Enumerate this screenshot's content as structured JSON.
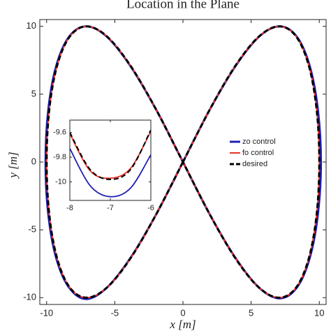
{
  "chart_data": [
    {
      "type": "line",
      "title": "Location in the Plane",
      "xlabel": "x [m]",
      "ylabel": "y [m]",
      "xlim": [
        -10.5,
        10.5
      ],
      "ylim": [
        -10.5,
        10.5
      ],
      "xticks": [
        -10,
        -5,
        0,
        5,
        10
      ],
      "yticks": [
        -10,
        -5,
        0,
        5,
        10
      ],
      "legend": "right",
      "series": [
        {
          "name": "zo control",
          "color": "#1f1fb4",
          "width": 3,
          "dash": false,
          "x": [
            0,
            1.95,
            3.85,
            5.58,
            7.09,
            8.35,
            9.3,
            9.9,
            10.12,
            9.9,
            9.3,
            8.35,
            7.09,
            5.58,
            3.85,
            1.95,
            0,
            -1.95,
            -3.85,
            -5.58,
            -7.09,
            -8.35,
            -9.3,
            -9.88,
            -10.08,
            -9.88,
            -9.3,
            -8.35,
            -7.09,
            -5.58,
            -3.85,
            -1.95,
            0
          ],
          "y": [
            0,
            3.83,
            7.07,
            9.24,
            10,
            9.24,
            7.07,
            3.83,
            0,
            -3.83,
            -7.07,
            -9.26,
            -10.05,
            -9.26,
            -7.07,
            -3.83,
            0,
            3.83,
            7.07,
            9.24,
            10,
            9.24,
            7.07,
            3.83,
            0,
            -3.83,
            -7.07,
            -9.26,
            -10.1,
            -9.26,
            -7.07,
            -3.83,
            0
          ]
        },
        {
          "name": "fo control",
          "color": "#e8332a",
          "width": 2,
          "dash": false,
          "x": [
            0,
            1.95,
            3.83,
            5.56,
            7.07,
            8.31,
            9.24,
            9.81,
            10,
            9.81,
            9.24,
            8.31,
            7.07,
            5.56,
            3.83,
            1.95,
            0,
            -1.95,
            -3.83,
            -5.56,
            -7.07,
            -8.31,
            -9.24,
            -9.81,
            -10,
            -9.81,
            -9.24,
            -8.31,
            -7.07,
            -5.56,
            -3.83,
            -1.95,
            0
          ],
          "y": [
            0,
            3.83,
            7.07,
            9.24,
            10,
            9.24,
            7.07,
            3.83,
            0,
            -3.83,
            -7.07,
            -9.24,
            -10,
            -9.24,
            -7.07,
            -3.83,
            0,
            3.83,
            7.07,
            9.24,
            10,
            9.24,
            7.07,
            3.83,
            0,
            -3.83,
            -7.07,
            -9.24,
            -10,
            -9.24,
            -7.07,
            -3.83,
            0
          ]
        },
        {
          "name": "desired",
          "color": "#000000",
          "width": 3,
          "dash": true,
          "x": [
            0,
            1.95,
            3.83,
            5.56,
            7.07,
            8.31,
            9.24,
            9.81,
            10,
            9.81,
            9.24,
            8.31,
            7.07,
            5.56,
            3.83,
            1.95,
            0,
            -1.95,
            -3.83,
            -5.56,
            -7.07,
            -8.31,
            -9.24,
            -9.81,
            -10,
            -9.81,
            -9.24,
            -8.31,
            -7.07,
            -5.56,
            -3.83,
            -1.95,
            0
          ],
          "y": [
            0,
            3.83,
            7.07,
            9.24,
            10,
            9.24,
            7.07,
            3.83,
            0,
            -3.83,
            -7.07,
            -9.24,
            -10,
            -9.24,
            -7.07,
            -3.83,
            0,
            3.83,
            7.07,
            9.24,
            10,
            9.24,
            7.07,
            3.83,
            0,
            -3.83,
            -7.07,
            -9.24,
            -10,
            -9.24,
            -7.07,
            -3.83,
            0
          ]
        }
      ]
    },
    {
      "type": "line",
      "xlim": [
        -8,
        -6
      ],
      "ylim": [
        -10.15,
        -9.5
      ],
      "xticks": [
        -8,
        -7,
        -6
      ],
      "yticks": [
        -9.6,
        -9.8,
        -10
      ],
      "series": [
        {
          "name": "zo control",
          "color": "#1f1fb4",
          "width": 1.8,
          "dash": false,
          "x": [
            -8,
            -7.5,
            -7,
            -6.5,
            -6
          ],
          "y": [
            -9.73,
            -10.03,
            -10.12,
            -10.05,
            -9.78
          ]
        },
        {
          "name": "fo control",
          "color": "#e8332a",
          "width": 1.8,
          "dash": false,
          "x": [
            -8,
            -7.5,
            -7,
            -6.5,
            -6
          ],
          "y": [
            -9.61,
            -9.91,
            -9.97,
            -9.89,
            -9.59
          ]
        },
        {
          "name": "desired",
          "color": "#000000",
          "width": 2,
          "dash": true,
          "x": [
            -8,
            -7.5,
            -7,
            -6.5,
            -6
          ],
          "y": [
            -9.6,
            -9.9,
            -9.98,
            -9.9,
            -9.58
          ]
        }
      ]
    }
  ]
}
